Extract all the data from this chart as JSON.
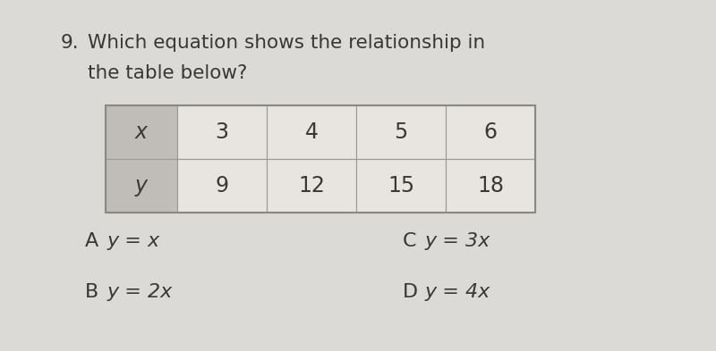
{
  "background_color": "#dcdad6",
  "question_number": "9.",
  "question_line1": "Which equation shows the relationship in",
  "question_line2": "the table below?",
  "table": {
    "row_labels": [
      "x",
      "y"
    ],
    "col_values": [
      [
        "3",
        "4",
        "5",
        "6"
      ],
      [
        "9",
        "12",
        "15",
        "18"
      ]
    ],
    "header_bg": "#c0bdb8",
    "cell_bg": "#e8e5e0",
    "border_color": "#999994",
    "outer_border_color": "#888884"
  },
  "options_left": [
    {
      "label": "A",
      "equation": "y = x"
    },
    {
      "label": "B",
      "equation": "y = 2x"
    }
  ],
  "options_right": [
    {
      "label": "C",
      "equation": "y = 3x"
    },
    {
      "label": "D",
      "equation": "y = 4x"
    }
  ],
  "question_fontsize": 15.5,
  "table_fontsize": 17,
  "option_fontsize": 16,
  "text_color": "#3a3836"
}
